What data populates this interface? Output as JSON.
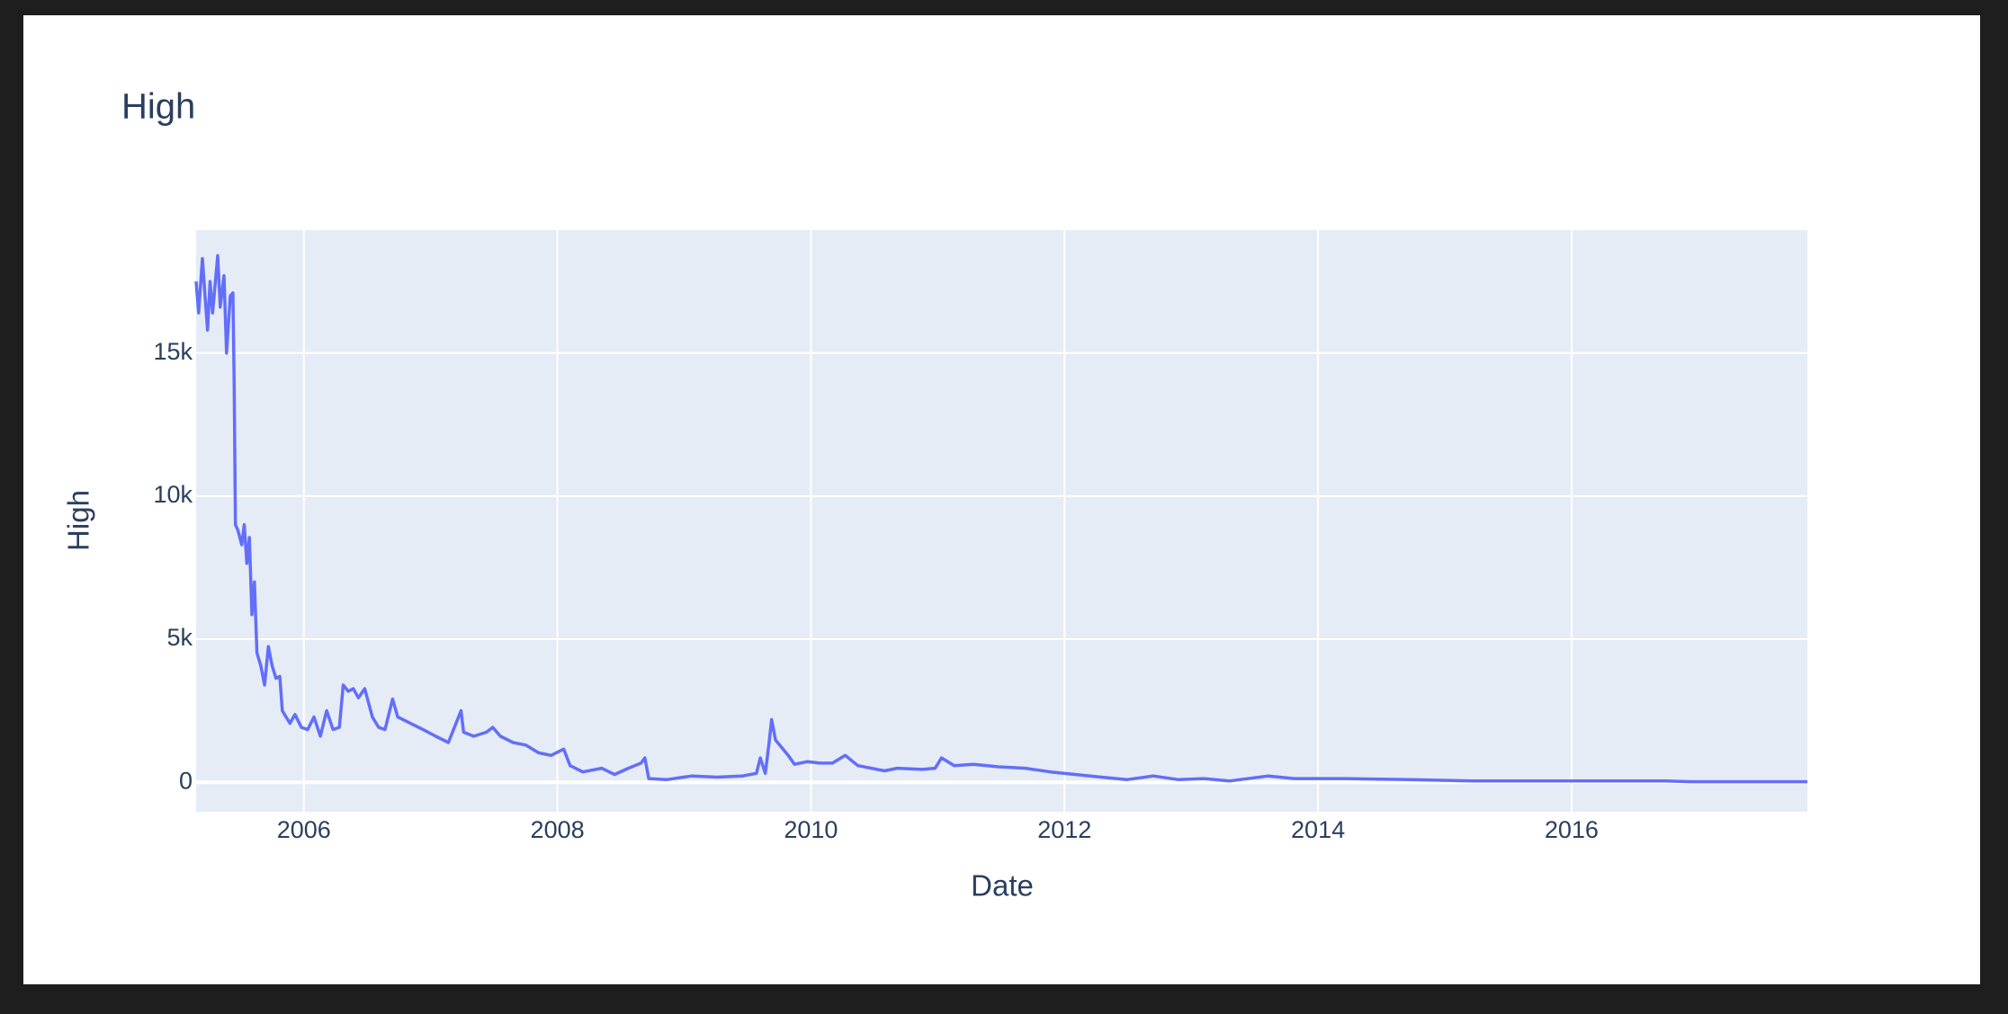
{
  "chart_data": {
    "type": "line",
    "title": "High",
    "x_label": "Date",
    "y_label": "High",
    "x": [
      2005.15,
      2005.17,
      2005.2,
      2005.22,
      2005.24,
      2005.26,
      2005.28,
      2005.32,
      2005.34,
      2005.37,
      2005.39,
      2005.42,
      2005.44,
      2005.45,
      2005.46,
      2005.48,
      2005.51,
      2005.53,
      2005.55,
      2005.57,
      2005.59,
      2005.61,
      2005.63,
      2005.66,
      2005.69,
      2005.72,
      2005.75,
      2005.78,
      2005.81,
      2005.83,
      2005.86,
      2005.89,
      2005.93,
      2005.98,
      2006.03,
      2006.08,
      2006.13,
      2006.18,
      2006.23,
      2006.28,
      2006.31,
      2006.35,
      2006.39,
      2006.43,
      2006.48,
      2006.54,
      2006.59,
      2006.64,
      2006.7,
      2006.74,
      2006.84,
      2006.94,
      2007.04,
      2007.14,
      2007.24,
      2007.26,
      2007.34,
      2007.44,
      2007.49,
      2007.55,
      2007.65,
      2007.75,
      2007.85,
      2007.95,
      2008.05,
      2008.1,
      2008.2,
      2008.35,
      2008.45,
      2008.56,
      2008.66,
      2008.69,
      2008.72,
      2008.86,
      2009.06,
      2009.26,
      2009.46,
      2009.57,
      2009.6,
      2009.64,
      2009.67,
      2009.69,
      2009.72,
      2009.82,
      2009.87,
      2009.97,
      2010.07,
      2010.17,
      2010.27,
      2010.37,
      2010.58,
      2010.68,
      2010.88,
      2010.98,
      2011.03,
      2011.13,
      2011.28,
      2011.48,
      2011.69,
      2011.89,
      2012.09,
      2012.29,
      2012.49,
      2012.7,
      2012.9,
      2013.1,
      2013.3,
      2013.61,
      2013.81,
      2014.21,
      2014.72,
      2015.22,
      2015.73,
      2016.54,
      2016.74,
      2016.94,
      2017.86
    ],
    "series": [
      {
        "name": "High",
        "color": "#636efa",
        "values": [
          17500,
          16400,
          18300,
          17000,
          15800,
          17500,
          16400,
          18400,
          16600,
          17700,
          15000,
          17000,
          17100,
          13900,
          9000,
          8800,
          8300,
          9000,
          7650,
          8550,
          5860,
          7000,
          4520,
          4070,
          3400,
          4740,
          4070,
          3630,
          3700,
          2500,
          2280,
          2060,
          2370,
          1920,
          1840,
          2280,
          1610,
          2500,
          1840,
          1920,
          3400,
          3180,
          3270,
          2950,
          3270,
          2280,
          1920,
          1840,
          2910,
          2280,
          2060,
          1840,
          1610,
          1390,
          2500,
          1750,
          1610,
          1750,
          1920,
          1610,
          1390,
          1300,
          1030,
          940,
          1160,
          580,
          360,
          490,
          270,
          490,
          670,
          850,
          130,
          90,
          220,
          180,
          220,
          310,
          850,
          310,
          1390,
          2190,
          1480,
          940,
          630,
          720,
          670,
          670,
          940,
          580,
          400,
          490,
          450,
          490,
          850,
          580,
          630,
          540,
          490,
          360,
          270,
          180,
          90,
          220,
          90,
          130,
          45,
          220,
          130,
          130,
          90,
          45,
          45,
          45,
          45,
          20,
          20
        ]
      }
    ],
    "xlim": [
      2005.15,
      2017.86
    ],
    "xticks": [
      2006,
      2008,
      2010,
      2012,
      2014,
      2016
    ],
    "ylim": [
      -1030,
      19293
    ],
    "yticks": [
      0,
      {
        "value": 5000,
        "label": "5k"
      },
      {
        "value": 10000,
        "label": "10k"
      },
      {
        "value": 15000,
        "label": "15k"
      }
    ],
    "grid": true
  }
}
